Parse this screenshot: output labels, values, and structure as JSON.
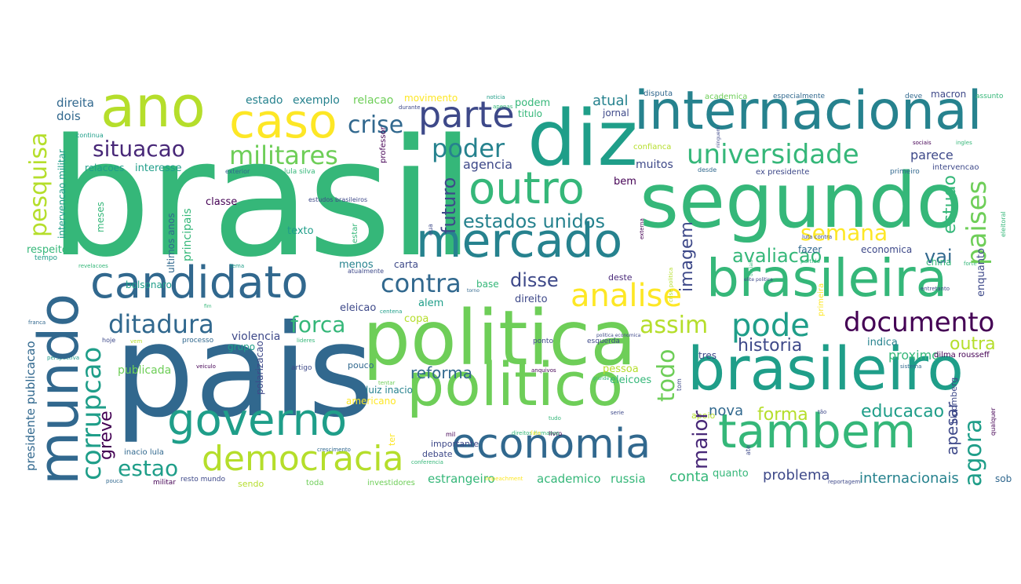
{
  "wordcloud": {
    "colors": {
      "c1": "#31688e",
      "c2": "#1f9e89",
      "c3": "#35b779",
      "c4": "#6ece58",
      "c5": "#b5de2b",
      "c6": "#fde725",
      "c7": "#440154",
      "c8": "#3e4989",
      "c9": "#26828e",
      "c10": "#482878"
    },
    "words": [
      {
        "text": "brasil"
      },
      {
        "text": "pais"
      },
      {
        "text": "politica"
      },
      {
        "text": "segundo"
      },
      {
        "text": "diz"
      },
      {
        "text": "politico"
      },
      {
        "text": "brasileiro"
      },
      {
        "text": "internacional"
      },
      {
        "text": "mundo"
      },
      {
        "text": "tambem"
      },
      {
        "text": "brasileira"
      },
      {
        "text": "mercado"
      },
      {
        "text": "economia"
      },
      {
        "text": "governo"
      },
      {
        "text": "candidato"
      },
      {
        "text": "ano"
      },
      {
        "text": "caso"
      },
      {
        "text": "outro"
      },
      {
        "text": "democracia"
      },
      {
        "text": "documento"
      },
      {
        "text": "corrupcao"
      },
      {
        "text": "pode"
      },
      {
        "text": "paises"
      },
      {
        "text": "parte"
      },
      {
        "text": "ditadura"
      },
      {
        "text": "analise"
      },
      {
        "text": "contra"
      },
      {
        "text": "crise"
      },
      {
        "text": "universidade"
      },
      {
        "text": "poder"
      },
      {
        "text": "militares"
      },
      {
        "text": "situacao"
      },
      {
        "text": "pesquisa"
      },
      {
        "text": "agora"
      },
      {
        "text": "semana"
      },
      {
        "text": "todo"
      },
      {
        "text": "estados unidos"
      },
      {
        "text": "assim"
      },
      {
        "text": "estao"
      },
      {
        "text": "forca"
      },
      {
        "text": "maior"
      },
      {
        "text": "futuro"
      },
      {
        "text": "avaliacao"
      },
      {
        "text": "disse"
      },
      {
        "text": "historia"
      },
      {
        "text": "outra"
      },
      {
        "text": "educacao"
      },
      {
        "text": "vai"
      },
      {
        "text": "forma"
      },
      {
        "text": "estudo"
      },
      {
        "text": "greve"
      },
      {
        "text": "imagem"
      },
      {
        "text": "apesar"
      },
      {
        "text": "reforma"
      },
      {
        "text": "conta"
      },
      {
        "text": "problema"
      },
      {
        "text": "internacionais"
      },
      {
        "text": "nova"
      },
      {
        "text": "proximo"
      },
      {
        "text": "parece"
      },
      {
        "text": "atual"
      },
      {
        "text": "agencia"
      },
      {
        "text": "muitos"
      },
      {
        "text": "exemplo"
      },
      {
        "text": "relacao"
      },
      {
        "text": "movimento"
      },
      {
        "text": "estado"
      },
      {
        "text": "direita"
      },
      {
        "text": "dois"
      },
      {
        "text": "interesse"
      },
      {
        "text": "relacoes"
      },
      {
        "text": "podem"
      },
      {
        "text": "titulo"
      },
      {
        "text": "jornal"
      },
      {
        "text": "macron"
      },
      {
        "text": "academica"
      },
      {
        "text": "especialmente"
      },
      {
        "text": "deve"
      },
      {
        "text": "assunto"
      },
      {
        "text": "disputa"
      },
      {
        "text": "bem"
      },
      {
        "text": "fazer"
      },
      {
        "text": "economica"
      },
      {
        "text": "china"
      },
      {
        "text": "enquanto"
      },
      {
        "text": "primeira"
      },
      {
        "text": "tres"
      },
      {
        "text": "indica"
      },
      {
        "text": "dilma rousseff"
      },
      {
        "text": "bloomberg"
      },
      {
        "text": "qualquer"
      },
      {
        "text": "sob"
      },
      {
        "text": "estrangeiro"
      },
      {
        "text": "academico"
      },
      {
        "text": "russia"
      },
      {
        "text": "quanto"
      },
      {
        "text": "eleicoes"
      },
      {
        "text": "pessoa"
      },
      {
        "text": "polarizacao"
      },
      {
        "text": "publicada"
      },
      {
        "text": "presidente publicacao"
      },
      {
        "text": "violencia"
      },
      {
        "text": "grupo"
      },
      {
        "text": "alem"
      },
      {
        "text": "copa"
      },
      {
        "text": "eleicao"
      },
      {
        "text": "menos"
      },
      {
        "text": "carta"
      },
      {
        "text": "base"
      },
      {
        "text": "direito"
      },
      {
        "text": "deste"
      },
      {
        "text": "texto"
      },
      {
        "text": "bolsonaro"
      },
      {
        "text": "classe"
      },
      {
        "text": "principais"
      },
      {
        "text": "ultimos anos"
      },
      {
        "text": "meses"
      },
      {
        "text": "intervencao militar"
      },
      {
        "text": "respeito"
      },
      {
        "text": "tempo"
      },
      {
        "text": "ponto"
      },
      {
        "text": "esquerda"
      },
      {
        "text": "luiz inacio"
      },
      {
        "text": "americano"
      },
      {
        "text": "ter"
      },
      {
        "text": "debate"
      },
      {
        "text": "importante"
      },
      {
        "text": "sendo"
      },
      {
        "text": "toda"
      },
      {
        "text": "investidores"
      },
      {
        "text": "inacio lula"
      },
      {
        "text": "resto mundo"
      },
      {
        "text": "militar"
      },
      {
        "text": "processo"
      },
      {
        "text": "artigo"
      },
      {
        "text": "pouco"
      },
      {
        "text": "apoio"
      },
      {
        "text": "ate"
      },
      {
        "text": "livro"
      },
      {
        "text": "confianca"
      },
      {
        "text": "ex presidente"
      },
      {
        "text": "primeiro"
      },
      {
        "text": "intervencao"
      },
      {
        "text": "desde"
      },
      {
        "text": "exterior"
      },
      {
        "text": "lula silva"
      },
      {
        "text": "estar"
      },
      {
        "text": "professor"
      },
      {
        "text": "estudos brasileiros"
      },
      {
        "text": "eua"
      },
      {
        "text": "continua"
      },
      {
        "text": "durante"
      },
      {
        "text": "noticia"
      },
      {
        "text": "ninguem"
      },
      {
        "text": "sociais"
      },
      {
        "text": "ingles"
      },
      {
        "text": "eleitoral"
      },
      {
        "text": "externa"
      },
      {
        "text": "entretanto"
      },
      {
        "text": "partido"
      },
      {
        "text": "crise politica"
      },
      {
        "text": "tom"
      },
      {
        "text": "perspectiva"
      },
      {
        "text": "veiculo"
      },
      {
        "text": "lideres"
      },
      {
        "text": "politica economica"
      },
      {
        "text": "anquivos"
      },
      {
        "text": "grande"
      },
      {
        "text": "sistema"
      },
      {
        "text": "serie"
      },
      {
        "text": "tão"
      },
      {
        "text": "tudo"
      },
      {
        "text": "mil"
      },
      {
        "text": "crescimento"
      },
      {
        "text": "conferencia"
      },
      {
        "text": "reportagem"
      },
      {
        "text": "impeachment"
      },
      {
        "text": "pouca"
      },
      {
        "text": "franca"
      },
      {
        "text": "hoje"
      },
      {
        "text": "vem"
      },
      {
        "text": "revelacoes"
      },
      {
        "text": "tema"
      },
      {
        "text": "fim"
      },
      {
        "text": "atualmente"
      },
      {
        "text": "torno"
      },
      {
        "text": "centena"
      },
      {
        "text": "tentar"
      },
      {
        "text": "direitos humanos"
      },
      {
        "text": "fala"
      },
      {
        "text": "elite politica"
      },
      {
        "text": "forte"
      },
      {
        "text": "apenas"
      },
      {
        "text": "oficiais"
      },
      {
        "text": "luta contra"
      },
      {
        "text": "pt"
      },
      {
        "text": "lula"
      }
    ]
  }
}
